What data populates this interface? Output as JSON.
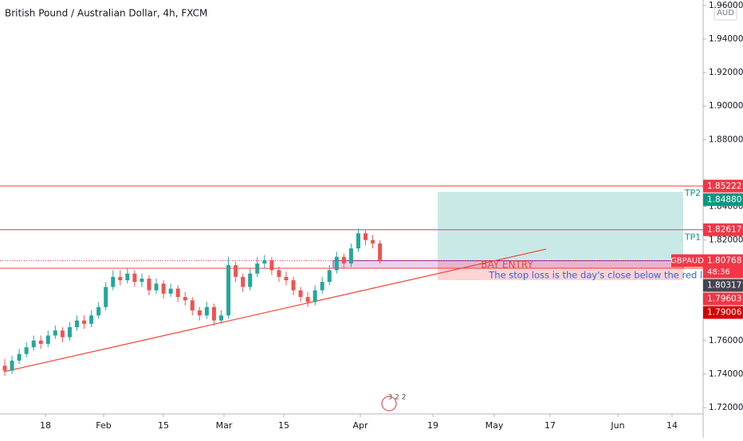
{
  "chart_data": {
    "type": "candlestick",
    "title": "British Pound / Australian Dollar, 4h, FXCM",
    "currency": "AUD",
    "open": [
      1.745,
      1.742,
      1.748,
      1.752,
      1.756,
      1.76,
      1.758,
      1.763,
      1.766,
      1.762,
      1.768,
      1.772,
      1.77,
      1.775,
      1.78,
      1.792,
      1.798,
      1.796,
      1.8,
      1.795,
      1.797,
      1.79,
      1.794,
      1.788,
      1.791,
      1.786,
      1.784,
      1.778,
      1.775,
      1.78,
      1.772,
      1.775,
      1.805,
      1.798,
      1.792,
      1.8,
      1.806,
      1.808,
      1.802,
      1.798,
      1.796,
      1.79,
      1.786,
      1.783,
      1.79,
      1.795,
      1.802,
      1.81,
      1.806,
      1.815,
      1.824,
      1.82,
      1.818
    ],
    "high": [
      1.749,
      1.751,
      1.755,
      1.759,
      1.763,
      1.763,
      1.766,
      1.769,
      1.768,
      1.771,
      1.775,
      1.775,
      1.778,
      1.783,
      1.795,
      1.802,
      1.802,
      1.803,
      1.802,
      1.8,
      1.799,
      1.797,
      1.796,
      1.794,
      1.793,
      1.789,
      1.786,
      1.78,
      1.783,
      1.782,
      1.778,
      1.81,
      1.807,
      1.8,
      1.803,
      1.81,
      1.811,
      1.81,
      1.804,
      1.801,
      1.798,
      1.792,
      1.789,
      1.793,
      1.798,
      1.805,
      1.813,
      1.812,
      1.818,
      1.827,
      1.826,
      1.823,
      1.82
    ],
    "low": [
      1.739,
      1.74,
      1.746,
      1.75,
      1.754,
      1.755,
      1.756,
      1.761,
      1.759,
      1.76,
      1.766,
      1.767,
      1.768,
      1.773,
      1.778,
      1.79,
      1.793,
      1.794,
      1.792,
      1.792,
      1.787,
      1.788,
      1.785,
      1.786,
      1.783,
      1.781,
      1.775,
      1.772,
      1.773,
      1.769,
      1.77,
      1.773,
      1.795,
      1.789,
      1.79,
      1.798,
      1.803,
      1.799,
      1.795,
      1.793,
      1.787,
      1.783,
      1.78,
      1.781,
      1.788,
      1.793,
      1.8,
      1.803,
      1.804,
      1.813,
      1.817,
      1.815,
      1.806
    ],
    "close": [
      1.742,
      1.748,
      1.752,
      1.756,
      1.76,
      1.758,
      1.763,
      1.766,
      1.762,
      1.768,
      1.772,
      1.77,
      1.775,
      1.78,
      1.792,
      1.798,
      1.796,
      1.8,
      1.795,
      1.797,
      1.79,
      1.794,
      1.788,
      1.791,
      1.786,
      1.784,
      1.778,
      1.775,
      1.78,
      1.772,
      1.775,
      1.805,
      1.798,
      1.792,
      1.8,
      1.806,
      1.808,
      1.802,
      1.798,
      1.796,
      1.79,
      1.786,
      1.783,
      1.79,
      1.795,
      1.802,
      1.81,
      1.806,
      1.815,
      1.824,
      1.82,
      1.818,
      1.808
    ],
    "up_color": "#26a69a",
    "down_color": "#ef5350",
    "ylim": [
      1.7162,
      1.9633
    ],
    "yticks": [
      {
        "value": 1.72,
        "label": "1.72000"
      },
      {
        "value": 1.74,
        "label": "1.74000"
      },
      {
        "value": 1.76,
        "label": "1.76000"
      },
      {
        "value": 1.82,
        "label": "1.82000"
      },
      {
        "value": 1.84,
        "label": "1.84000"
      },
      {
        "value": 1.88,
        "label": "1.88000"
      },
      {
        "value": 1.9,
        "label": "1.90000"
      },
      {
        "value": 1.92,
        "label": "1.92000"
      },
      {
        "value": 1.94,
        "label": "1.94000"
      },
      {
        "value": 1.96,
        "label": "1.96000"
      }
    ],
    "xticks": [
      "18",
      "Feb",
      "15",
      "Mar",
      "15",
      "Apr",
      "19",
      "May",
      "17",
      "Jun",
      "14"
    ],
    "levels": [
      {
        "value": 1.85222,
        "color": "#f44336"
      },
      {
        "value": 1.82617,
        "color": "#f44336"
      },
      {
        "value": 1.80317,
        "color": "#f44336"
      }
    ],
    "current": 1.80768,
    "trendline": [
      1.7414,
      1.8146
    ],
    "position": {
      "target": 1.8488,
      "entry": 1.80768,
      "stop": 1.79603
    },
    "zone": [
      1.80317,
      1.80768
    ],
    "zone_label": "BAY ENTRY",
    "annotations": [
      "TP2",
      "TP1",
      "The stop loss is the day's close below the red line"
    ],
    "price_tags": [
      {
        "value": 1.85222,
        "label": "1.85222",
        "color": "#f23645"
      },
      {
        "value": 1.8488,
        "label": "1.84880",
        "color": "#089981"
      },
      {
        "value": 1.82617,
        "label": "1.82617",
        "color": "#f23645"
      },
      {
        "value": 1.80768,
        "label": "1.80768",
        "color": "#f23645"
      },
      {
        "value": 1.80317,
        "label": "1.80317",
        "color": "#434651"
      },
      {
        "value": 1.79603,
        "label": "1.79603",
        "color": "#f23645"
      },
      {
        "value": 1.79006,
        "label": "1.79006",
        "color": "#d50000"
      }
    ],
    "symbol": "GBPAUD",
    "countdown": "48:36",
    "logo": "3 2 2"
  }
}
